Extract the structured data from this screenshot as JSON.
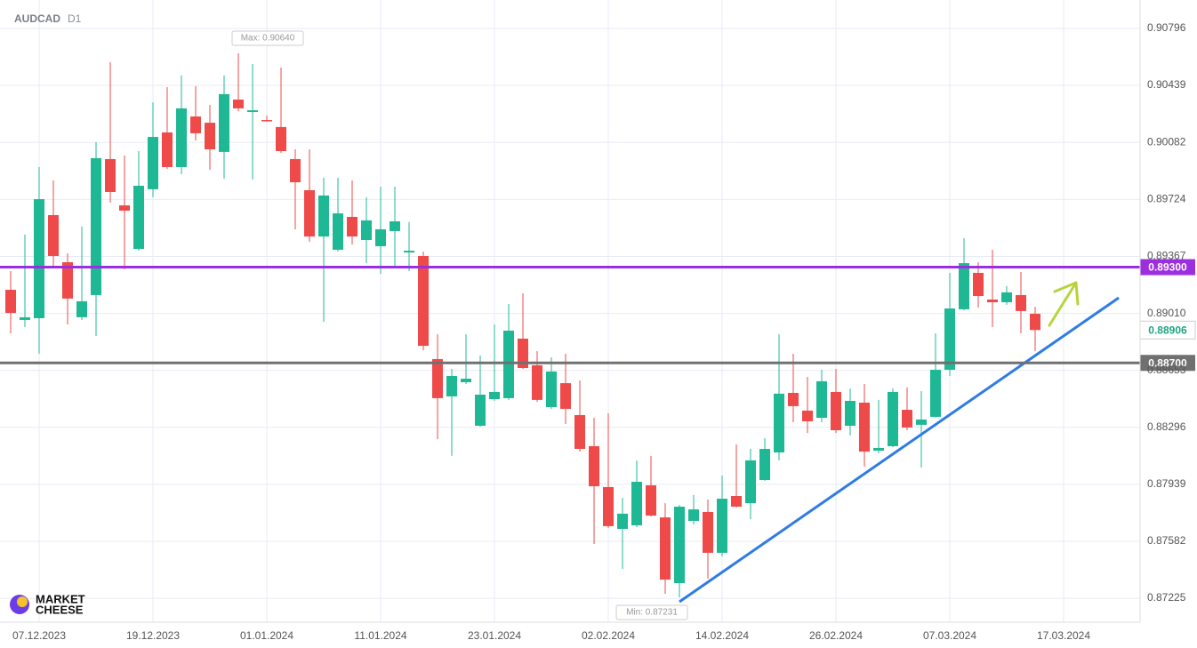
{
  "chart_data": {
    "type": "candlestick",
    "symbol": "AUDCAD",
    "timeframe": "D1",
    "watermark": [
      "MARKET",
      "CHEESE"
    ],
    "max_label": "Max: 0.90640",
    "min_label": "Min: 0.87231",
    "up_color": "#1fb894",
    "down_color": "#ef4a4a",
    "grid": true,
    "ylim": [
      0.87075,
      0.90974
    ],
    "yticks": [
      0.90796,
      0.90439,
      0.90082,
      0.89724,
      0.89367,
      {
        "value": 0.8901,
        "label": "0.89010"
      },
      0.88653,
      0.88296,
      0.87939,
      0.87582,
      0.87225
    ],
    "xlim": [
      -0.75,
      79.375
    ],
    "xticks": [
      {
        "value": 2,
        "label": "07.12.2023"
      },
      {
        "value": 10,
        "label": "19.12.2023"
      },
      {
        "value": 18,
        "label": "01.01.2024"
      },
      {
        "value": 26,
        "label": "11.01.2024"
      },
      {
        "value": 34,
        "label": "23.01.2024"
      },
      {
        "value": 42,
        "label": "02.02.2024"
      },
      {
        "value": 50,
        "label": "14.02.2024"
      },
      {
        "value": 58,
        "label": "26.02.2024"
      },
      {
        "value": 66,
        "label": "07.03.2024"
      },
      {
        "value": 74,
        "label": "17.03.2024"
      }
    ],
    "hlines": [
      {
        "value": 0.893,
        "label": "0.89300",
        "color": "#9b2fe0"
      },
      {
        "value": 0.887,
        "label": "0.88700",
        "color": "#707070"
      }
    ],
    "last_label": "0.88906",
    "open": [
      0.89158,
      0.88969,
      0.8898,
      0.89626,
      0.89331,
      0.88986,
      0.89125,
      0.89977,
      0.89687,
      0.89414,
      0.89788,
      0.90144,
      0.89927,
      0.90244,
      0.90205,
      0.90022,
      0.9035,
      0.90272,
      0.90222,
      0.90178,
      0.89977,
      0.89782,
      0.89492,
      0.89409,
      0.89615,
      0.8947,
      0.89431,
      0.89526,
      0.89392,
      0.8937,
      0.88724,
      0.8849,
      0.88579,
      0.88306,
      0.88473,
      0.88479,
      0.88852,
      0.88685,
      0.88423,
      0.88573,
      0.88373,
      0.88178,
      0.87922,
      0.8766,
      0.87682,
      0.87933,
      0.87732,
      0.8732,
      0.8771,
      0.87766,
      0.8751,
      0.87866,
      0.87821,
      0.87966,
      0.88139,
      0.88512,
      0.88401,
      0.88356,
      0.88518,
      0.88306,
      0.88451,
      0.8815,
      0.88178,
      0.88406,
      0.88312,
      0.88362,
      0.88657,
      0.89036,
      0.89264,
      0.89097,
      0.8908,
      0.89125,
      0.89008
    ],
    "high": [
      0.89275,
      0.89504,
      0.89927,
      0.89843,
      0.89387,
      0.89554,
      0.90083,
      0.90584,
      0.89999,
      0.90027,
      0.90333,
      0.90428,
      0.90501,
      0.90434,
      0.90317,
      0.90501,
      0.9064,
      0.90573,
      0.9025,
      0.90551,
      0.90038,
      0.90038,
      0.8986,
      0.8986,
      0.89843,
      0.89738,
      0.89804,
      0.89804,
      0.89582,
      0.89398,
      0.8888,
      0.88662,
      0.8888,
      0.88746,
      0.88941,
      0.89069,
      0.89136,
      0.88774,
      0.88735,
      0.88757,
      0.8859,
      0.88356,
      0.88384,
      0.87855,
      0.88089,
      0.88117,
      0.87821,
      0.8781,
      0.87872,
      0.87844,
      0.87994,
      0.88189,
      0.88161,
      0.88228,
      0.8888,
      0.88757,
      0.88612,
      0.88657,
      0.88662,
      0.8854,
      0.88568,
      0.88468,
      0.8854,
      0.88546,
      0.88523,
      0.88885,
      0.89264,
      0.89481,
      0.89331,
      0.89409,
      0.89181,
      0.8927,
      0.89052
    ],
    "low": [
      0.88885,
      0.88924,
      0.88757,
      0.89303,
      0.88941,
      0.88969,
      0.88869,
      0.89704,
      0.89286,
      0.89403,
      0.89738,
      0.89916,
      0.89882,
      0.90094,
      0.8991,
      0.89854,
      0.90278,
      0.89849,
      0.90211,
      0.90016,
      0.89537,
      0.89459,
      0.88958,
      0.89398,
      0.89442,
      0.89325,
      0.89258,
      0.89303,
      0.89275,
      0.88779,
      0.88222,
      0.88117,
      0.88568,
      0.883,
      0.88462,
      0.88468,
      0.88662,
      0.88456,
      0.88412,
      0.88317,
      0.88144,
      0.87565,
      0.87665,
      0.87409,
      0.87671,
      0.87738,
      0.87253,
      0.87231,
      0.87688,
      0.87348,
      0.87487,
      0.87794,
      0.87721,
      0.87961,
      0.88089,
      0.88328,
      0.88261,
      0.88328,
      0.88261,
      0.88245,
      0.8805,
      0.88133,
      0.88172,
      0.88278,
      0.88044,
      0.88356,
      0.88618,
      0.8903,
      0.89047,
      0.88924,
      0.89064,
      0.88885,
      0.88774
    ],
    "close": [
      0.89013,
      0.88986,
      0.89726,
      0.8937,
      0.89103,
      0.89086,
      0.89983,
      0.89771,
      0.89654,
      0.8981,
      0.90116,
      0.89927,
      0.90295,
      0.90139,
      0.90038,
      0.90384,
      0.90295,
      0.90283,
      0.90217,
      0.90027,
      0.89832,
      0.89492,
      0.89749,
      0.89637,
      0.89492,
      0.89593,
      0.89537,
      0.89587,
      0.89403,
      0.88807,
      0.88479,
      0.88618,
      0.88601,
      0.88501,
      0.88518,
      0.88902,
      0.88668,
      0.88468,
      0.88646,
      0.88412,
      0.88161,
      0.87927,
      0.87677,
      0.87755,
      0.87955,
      0.87743,
      0.87342,
      0.87799,
      0.87782,
      0.8751,
      0.87849,
      0.87799,
      0.88089,
      0.88161,
      0.88507,
      0.88429,
      0.88334,
      0.88585,
      0.88278,
      0.88462,
      0.88144,
      0.88167,
      0.88518,
      0.88295,
      0.88345,
      0.88657,
      0.89041,
      0.89325,
      0.89119,
      0.8908,
      0.89142,
      0.89025,
      0.88906
    ]
  }
}
